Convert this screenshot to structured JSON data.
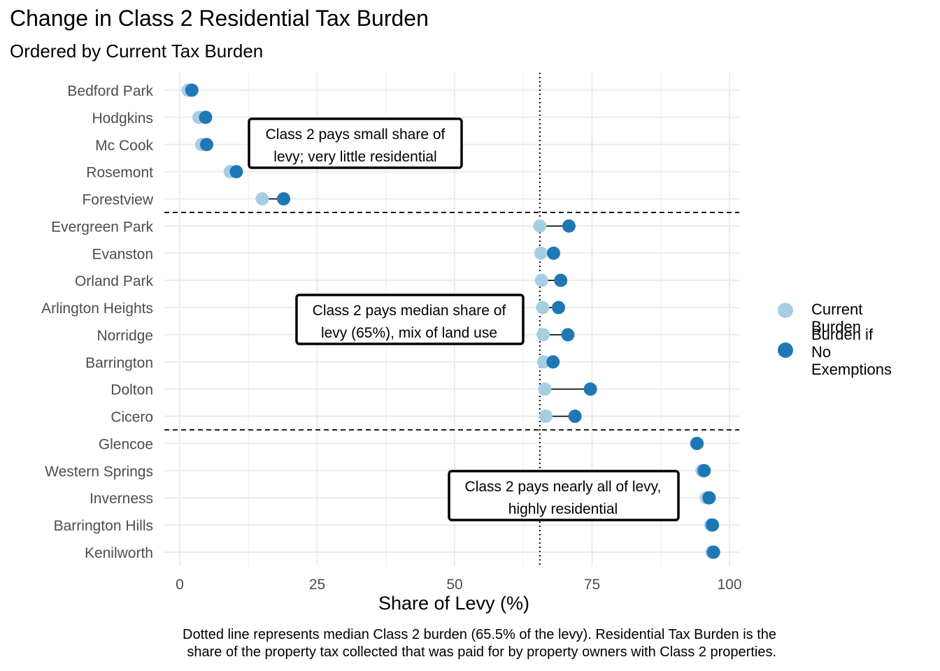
{
  "title": "Change in Class 2 Residential Tax Burden",
  "subtitle": "Ordered by Current Tax Burden",
  "caption": [
    "Dotted line represents median Class 2 burden (65.5% of the levy). Residential Tax Burden is the",
    "share of the property tax collected that was paid for by property owners with Class 2 properties."
  ],
  "legend": [
    {
      "label": "Current Burden",
      "color": "#a6cee3"
    },
    {
      "label": "Burden if\nNo Exemptions",
      "color": "#1f78b4"
    }
  ],
  "chart_data": {
    "type": "scatter",
    "title": "Change in Class 2 Residential Tax Burden",
    "subtitle": "Ordered by Current Tax Burden",
    "xlabel": "Share of Levy (%)",
    "ylabel": "",
    "xlim": [
      -3,
      102
    ],
    "x_ticks": [
      0,
      25,
      50,
      75,
      100
    ],
    "grid": true,
    "legend_position": "right",
    "median_line": 65.5,
    "group_separators_after": [
      "Forestview",
      "Cicero"
    ],
    "categories": [
      "Bedford Park",
      "Hodgkins",
      "Mc Cook",
      "Rosemont",
      "Forestview",
      "Evergreen Park",
      "Evanston",
      "Orland Park",
      "Arlington Heights",
      "Norridge",
      "Barrington",
      "Dolton",
      "Cicero",
      "Glencoe",
      "Western Springs",
      "Inverness",
      "Barrington Hills",
      "Kenilworth"
    ],
    "series": [
      {
        "name": "Current Burden",
        "color": "#a6cee3",
        "values": [
          1.5,
          3.5,
          4.0,
          9.2,
          15.0,
          65.5,
          65.7,
          65.8,
          66.0,
          66.1,
          66.2,
          66.4,
          66.6,
          94.0,
          95.0,
          95.8,
          96.6,
          96.8
        ]
      },
      {
        "name": "Burden if\nNo Exemptions",
        "color": "#1f78b4",
        "values": [
          2.2,
          4.7,
          4.9,
          10.3,
          18.9,
          70.8,
          68.0,
          69.3,
          68.9,
          70.6,
          67.9,
          74.7,
          71.9,
          94.1,
          95.4,
          96.3,
          96.9,
          97.1
        ]
      }
    ],
    "annotations": [
      {
        "lines": [
          "Class 2 pays small share of",
          "levy; very little residential"
        ]
      },
      {
        "lines": [
          "Class 2 pays median share of",
          "levy (65%), mix of land use"
        ]
      },
      {
        "lines": [
          "Class 2 pays nearly all of levy,",
          "highly residential"
        ]
      }
    ]
  }
}
